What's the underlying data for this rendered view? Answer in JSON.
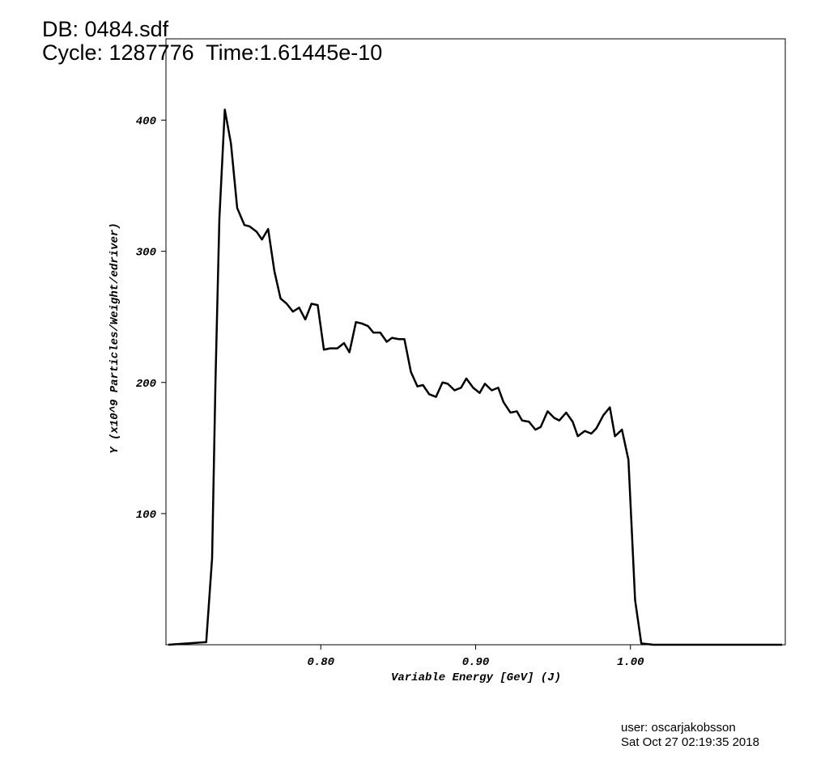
{
  "header": {
    "db": "DB: 0484.sdf",
    "cycle": "Cycle: 1287776  Time:1.61445e-10"
  },
  "footer": {
    "user": "user: oscarjakobsson",
    "date": "Sat Oct 27 02:19:35 2018"
  },
  "chart_data": {
    "type": "line",
    "xlabel": "Variable Energy [GeV] (J)",
    "ylabel": "Y (x10^9 Particles/Weight/edriver)",
    "xlim": [
      0.7,
      1.1
    ],
    "ylim": [
      0,
      462
    ],
    "xticks": [
      {
        "value": 0.8,
        "label": "0.80"
      },
      {
        "value": 0.9,
        "label": "0.90"
      },
      {
        "value": 1.0,
        "label": "1.00"
      }
    ],
    "yticks": [
      100,
      200,
      300,
      400
    ],
    "grid": false,
    "series": [
      {
        "color": "#000000",
        "x": [
          0.7015,
          0.726,
          0.7298,
          0.732,
          0.7345,
          0.738,
          0.742,
          0.746,
          0.7507,
          0.754,
          0.7585,
          0.762,
          0.766,
          0.77,
          0.774,
          0.778,
          0.782,
          0.786,
          0.79,
          0.794,
          0.798,
          0.802,
          0.806,
          0.8107,
          0.815,
          0.8185,
          0.8227,
          0.8264,
          0.8305,
          0.834,
          0.8384,
          0.8426,
          0.846,
          0.8504,
          0.854,
          0.8582,
          0.8624,
          0.866,
          0.87,
          0.8744,
          0.8786,
          0.882,
          0.8864,
          0.8906,
          0.894,
          0.8984,
          0.9026,
          0.906,
          0.9104,
          0.9146,
          0.918,
          0.9225,
          0.9266,
          0.93,
          0.9345,
          0.9386,
          0.942,
          0.9465,
          0.9507,
          0.954,
          0.9585,
          0.9627,
          0.966,
          0.9705,
          0.9747,
          0.978,
          0.9825,
          0.9867,
          0.99,
          0.9945,
          0.9987,
          1.003,
          1.007,
          1.015,
          1.098
        ],
        "values": [
          0,
          2,
          66,
          202,
          325,
          408,
          382,
          333,
          320,
          319,
          315,
          309,
          317,
          285,
          264,
          260,
          254,
          257,
          248,
          260,
          259,
          225,
          226,
          226,
          230,
          223,
          246,
          245,
          243,
          238,
          238,
          231,
          234,
          233,
          233,
          208,
          197,
          198,
          191,
          189,
          200,
          199,
          194,
          196,
          203,
          196,
          192,
          199,
          194,
          196,
          185,
          177,
          178,
          171,
          170,
          164,
          166,
          178,
          173,
          171,
          177,
          170,
          159,
          163,
          161,
          165,
          175,
          181,
          159,
          164,
          141,
          34,
          1,
          0,
          0
        ]
      }
    ]
  }
}
